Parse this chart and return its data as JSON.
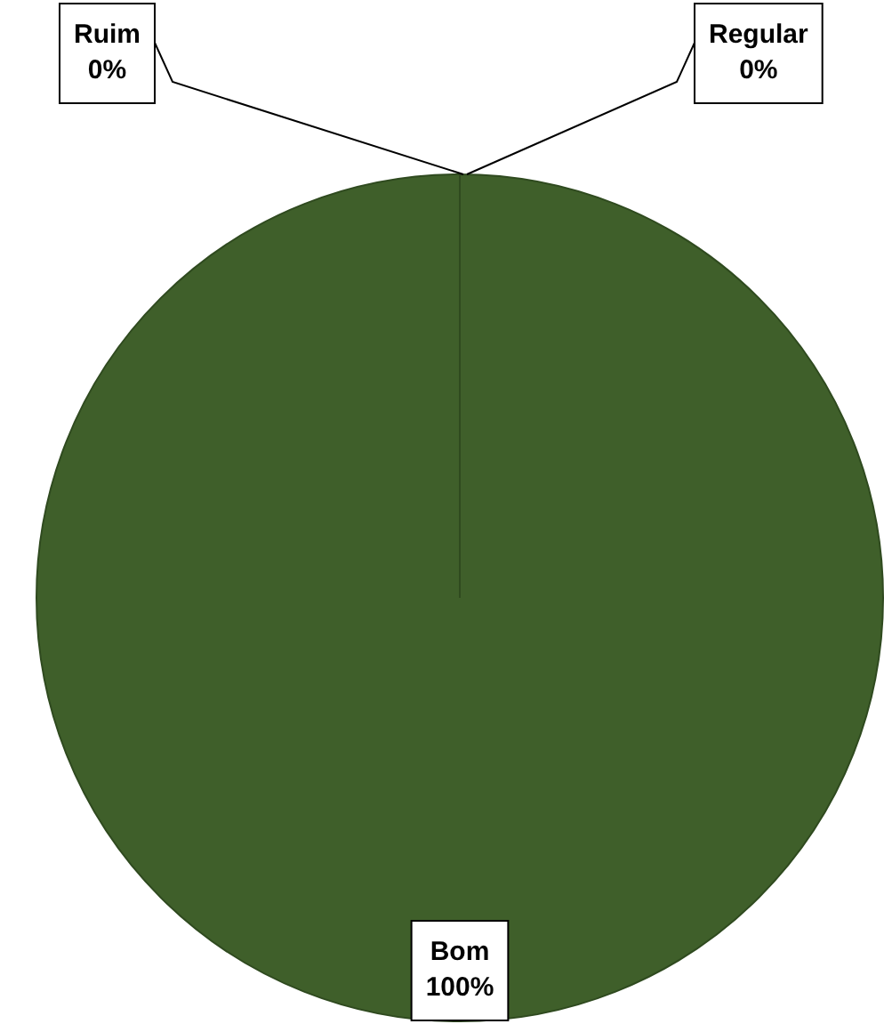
{
  "chart_data": {
    "type": "pie",
    "categories": [
      "Ruim",
      "Regular",
      "Bom"
    ],
    "values": [
      0,
      0,
      100
    ],
    "colors": [
      "#c0504d",
      "#4f81bd",
      "#3f5f2a"
    ],
    "value_labels": [
      "0%",
      "0%",
      "100%"
    ],
    "legend": false
  }
}
